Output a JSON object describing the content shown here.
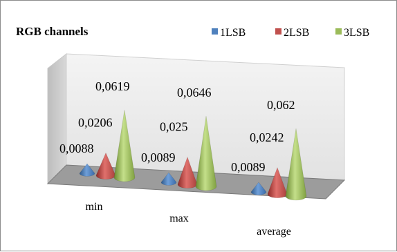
{
  "chart_data": {
    "type": "bar",
    "shape": "3d-cone",
    "title": "RGB channels",
    "categories": [
      "min",
      "max",
      "average"
    ],
    "series": [
      {
        "name": "1LSB",
        "values": [
          "0,0088",
          "0,0089",
          "0,0089"
        ],
        "numeric": [
          0.0088,
          0.0089,
          0.0089
        ],
        "color": "#4f81bd"
      },
      {
        "name": "2LSB",
        "values": [
          "0,0206",
          "0,025",
          "0,0242"
        ],
        "numeric": [
          0.0206,
          0.025,
          0.0242
        ],
        "color": "#c0504d"
      },
      {
        "name": "3LSB",
        "values": [
          "0,0619",
          "0,0646",
          "0,062"
        ],
        "numeric": [
          0.0619,
          0.0646,
          0.062
        ],
        "color": "#9bbb59"
      }
    ],
    "legend_position": "top-right",
    "grid": false
  }
}
